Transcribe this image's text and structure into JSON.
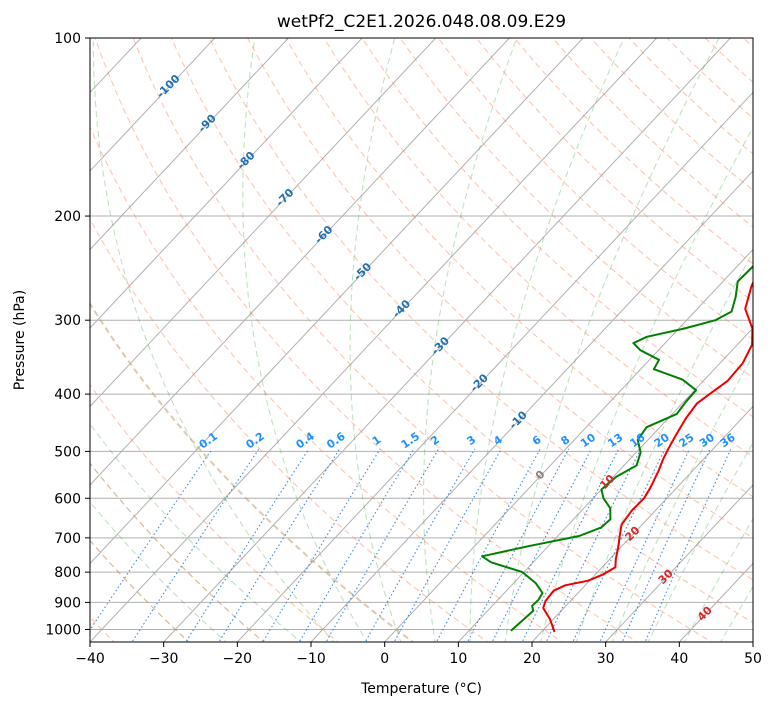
{
  "chart_data": {
    "type": "line",
    "title": "wetPf2_C2E1.2026.048.08.09.E29",
    "xlabel": "Temperature (°C)",
    "ylabel": "Pressure (hPa)",
    "xlim": [
      -40,
      50
    ],
    "ylim": [
      1050,
      100
    ],
    "x_ticks": [
      -40,
      -30,
      -20,
      -10,
      0,
      10,
      20,
      30,
      40,
      50
    ],
    "y_ticks": [
      100,
      200,
      300,
      400,
      500,
      600,
      700,
      800,
      900,
      1000
    ],
    "series": [
      {
        "name": "temperature",
        "color": "#ee0000",
        "points": [
          [
            21.8,
            1010
          ],
          [
            19.5,
            960
          ],
          [
            17.2,
            920
          ],
          [
            16.6,
            895
          ],
          [
            16.4,
            860
          ],
          [
            17.3,
            842
          ],
          [
            19.8,
            827
          ],
          [
            21.0,
            808
          ],
          [
            21.8,
            785
          ],
          [
            20.8,
            760
          ],
          [
            19.6,
            725
          ],
          [
            18.4,
            695
          ],
          [
            17.2,
            665
          ],
          [
            16.8,
            630
          ],
          [
            16.9,
            600
          ],
          [
            16.4,
            575
          ],
          [
            15.4,
            540
          ],
          [
            14.5,
            515
          ],
          [
            13.9,
            495
          ],
          [
            13.2,
            470
          ],
          [
            12.4,
            440
          ],
          [
            12.0,
            415
          ],
          [
            12.6,
            398
          ],
          [
            13.3,
            380
          ],
          [
            13.1,
            355
          ],
          [
            12.0,
            330
          ],
          [
            10.0,
            310
          ],
          [
            6.5,
            287
          ],
          [
            4.4,
            262
          ],
          [
            2.4,
            230
          ],
          [
            0.5,
            210
          ],
          [
            -1.8,
            190
          ],
          [
            -3.0,
            175
          ],
          [
            -3.3,
            168
          ],
          [
            -2.3,
            162
          ],
          [
            -0.5,
            154
          ],
          [
            2.2,
            145
          ],
          [
            3.2,
            136
          ],
          [
            4.3,
            120
          ],
          [
            6.5,
            104
          ],
          [
            8.6,
            97
          ]
        ]
      },
      {
        "name": "dewpoint",
        "color": "#008000",
        "points": [
          [
            15.7,
            1005
          ],
          [
            16.0,
            960
          ],
          [
            16.2,
            930
          ],
          [
            15.4,
            912
          ],
          [
            15.5,
            892
          ],
          [
            15.2,
            868
          ],
          [
            13.0,
            835
          ],
          [
            9.8,
            800
          ],
          [
            4.3,
            770
          ],
          [
            2.3,
            752
          ],
          [
            7.5,
            722
          ],
          [
            12.9,
            695
          ],
          [
            14.8,
            672
          ],
          [
            15.0,
            651
          ],
          [
            13.6,
            624
          ],
          [
            11.4,
            600
          ],
          [
            10.0,
            580
          ],
          [
            10.4,
            552
          ],
          [
            11.7,
            528
          ],
          [
            10.6,
            502
          ],
          [
            8.6,
            478
          ],
          [
            8.2,
            455
          ],
          [
            10.6,
            432
          ],
          [
            10.3,
            412
          ],
          [
            10.2,
            394
          ],
          [
            7.0,
            378
          ],
          [
            1.8,
            363
          ],
          [
            1.3,
            350
          ],
          [
            -2.5,
            337
          ],
          [
            -4.3,
            328
          ],
          [
            -3.3,
            320
          ],
          [
            0.7,
            310
          ],
          [
            3.9,
            300
          ],
          [
            5.0,
            290
          ],
          [
            3.7,
            274
          ],
          [
            2.0,
            258
          ],
          [
            2.2,
            240
          ],
          [
            1.0,
            225
          ],
          [
            -1.7,
            202
          ],
          [
            -3.6,
            185
          ],
          [
            -5.6,
            169
          ],
          [
            -4.2,
            162
          ],
          [
            -9.1,
            150
          ],
          [
            -9.3,
            140
          ],
          [
            -7.6,
            132
          ],
          [
            -3.6,
            118
          ],
          [
            -0.7,
            108
          ],
          [
            1.5,
            95
          ]
        ]
      }
    ],
    "dry_adiabat_labels": [
      "-100",
      "-90",
      "-80",
      "-70",
      "-60",
      "-50",
      "-40",
      "-30",
      "-20",
      "-10",
      "0",
      "10",
      "20",
      "30",
      "40"
    ],
    "mixing_ratio_labels": [
      "0.1",
      "0.2",
      "0.4",
      "0.6",
      "1",
      "1.5",
      "2",
      "3",
      "4",
      "6",
      "8",
      "10",
      "13",
      "16",
      "20",
      "25",
      "30",
      "36"
    ]
  }
}
